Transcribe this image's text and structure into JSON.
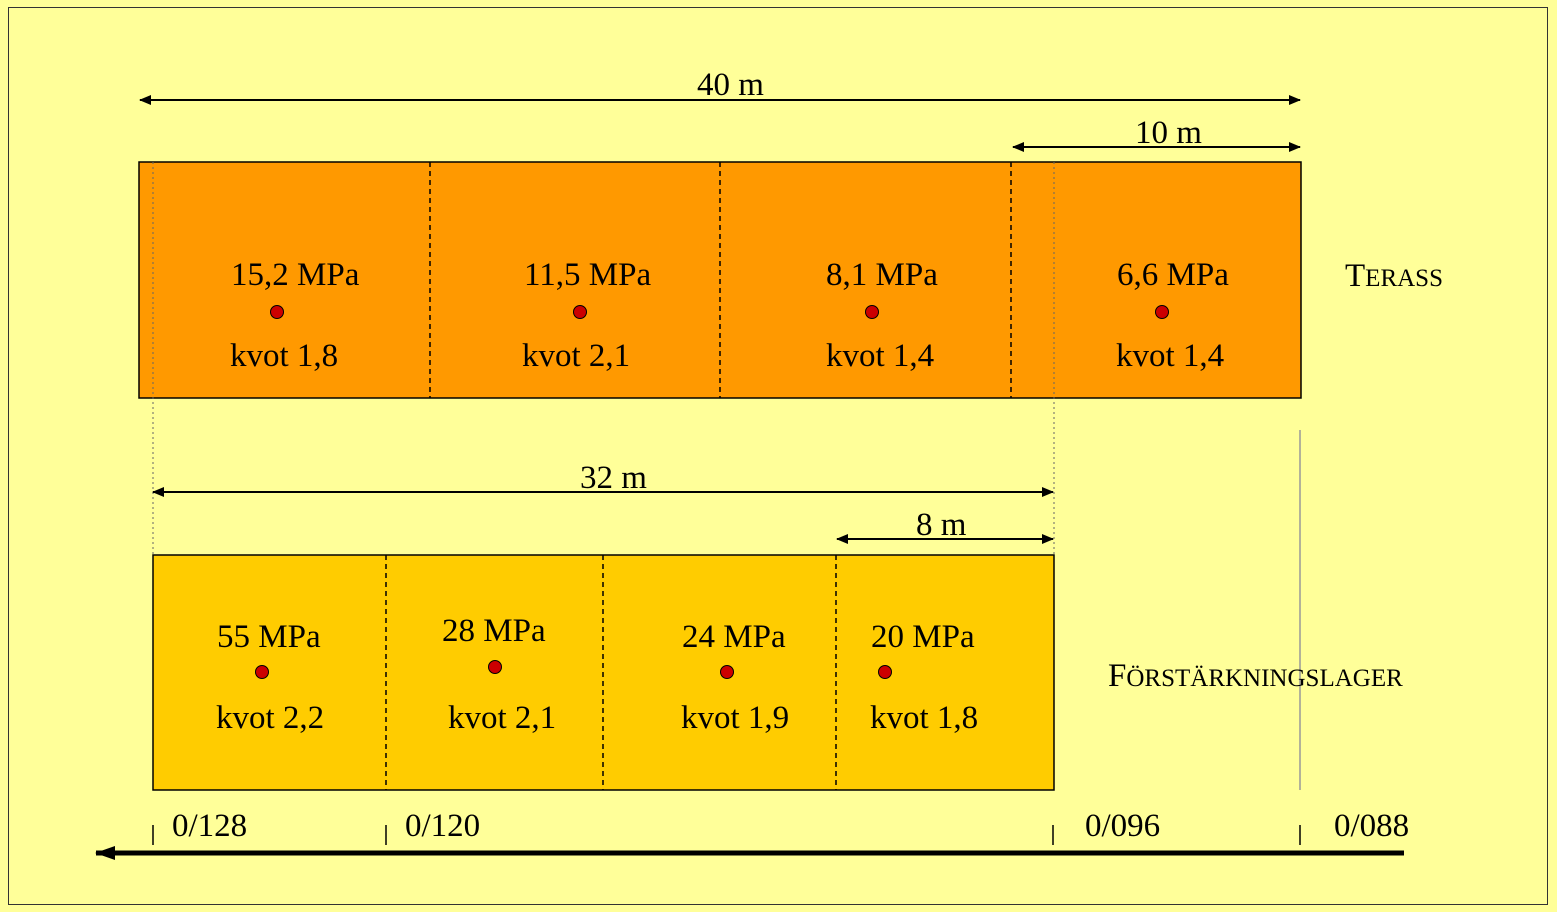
{
  "colors": {
    "background": "#ffff99",
    "terass_fill": "#ff9900",
    "forst_fill": "#ffcc00",
    "dot": "#cc0000"
  },
  "dimensions": {
    "total_top": "40 m",
    "sub_top": "10 m",
    "total_bottom": "32 m",
    "sub_bottom": "8 m"
  },
  "terass": {
    "label_first": "T",
    "label_rest": "ERASS",
    "cells": [
      {
        "mpa": "15,2 MPa",
        "kvot": "kvot 1,8"
      },
      {
        "mpa": "11,5 MPa",
        "kvot": "kvot 2,1"
      },
      {
        "mpa": "8,1 MPa",
        "kvot": "kvot 1,4"
      },
      {
        "mpa": "6,6 MPa",
        "kvot": "kvot 1,4"
      }
    ]
  },
  "forstarkning": {
    "label_first": "F",
    "label_rest": "ÖRSTÄRKNINGSLAGER",
    "cells": [
      {
        "mpa": "55 MPa",
        "kvot": "kvot 2,2"
      },
      {
        "mpa": "28 MPa",
        "kvot": "kvot 2,1"
      },
      {
        "mpa": "24 MPa",
        "kvot": "kvot 1,9"
      },
      {
        "mpa": "20 MPa",
        "kvot": "kvot 1,8"
      }
    ]
  },
  "chainage": [
    "0/128",
    "0/120",
    "0/096",
    "0/088"
  ]
}
